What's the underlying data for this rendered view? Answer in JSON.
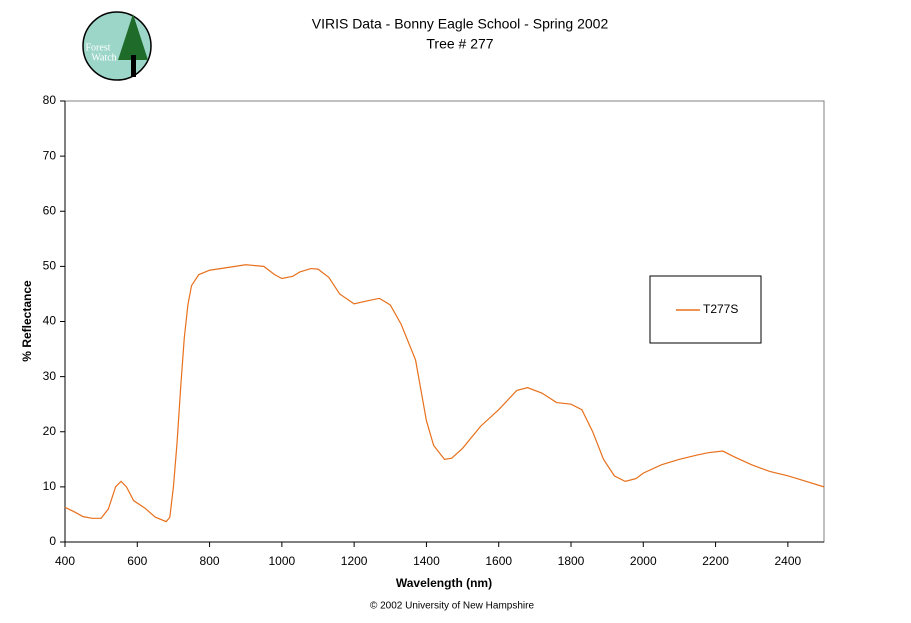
{
  "chart_data": {
    "type": "line",
    "title": "VIRIS Data - Bonny Eagle School - Spring 2002",
    "subtitle": "Tree # 277",
    "logo_text": [
      "Forest",
      "Watch"
    ],
    "x_label": "Wavelength (nm)",
    "y_label": "% Reflectance",
    "footer": "© 2002 University of New Hampshire",
    "x": [
      400,
      425,
      450,
      475,
      500,
      520,
      540,
      555,
      570,
      590,
      620,
      650,
      680,
      690,
      700,
      710,
      720,
      730,
      740,
      750,
      770,
      800,
      850,
      900,
      950,
      980,
      1000,
      1030,
      1050,
      1080,
      1100,
      1130,
      1160,
      1200,
      1240,
      1270,
      1300,
      1330,
      1370,
      1400,
      1420,
      1450,
      1470,
      1500,
      1550,
      1600,
      1650,
      1680,
      1720,
      1760,
      1800,
      1830,
      1860,
      1890,
      1920,
      1950,
      1980,
      2000,
      2050,
      2100,
      2150,
      2180,
      2220,
      2250,
      2300,
      2350,
      2400,
      2450,
      2500
    ],
    "series": [
      {
        "name": "T277S",
        "color": "#e8701c",
        "values": [
          6.3,
          5.5,
          4.6,
          4.3,
          4.3,
          6,
          10,
          11,
          10,
          7.5,
          6.2,
          4.5,
          3.7,
          4.5,
          10,
          18,
          28,
          37,
          43,
          46.5,
          48.5,
          49.3,
          49.8,
          50.3,
          50,
          48.5,
          47.8,
          48.2,
          49,
          49.6,
          49.5,
          48,
          45,
          43.2,
          43.8,
          44.2,
          43,
          39.5,
          33,
          22,
          17.5,
          15,
          15.2,
          17,
          21,
          24,
          27.5,
          28,
          27,
          25.3,
          25,
          24,
          20,
          15,
          12,
          11,
          11.5,
          12.5,
          14,
          15,
          15.8,
          16.2,
          16.5,
          15.5,
          14,
          12.8,
          12,
          11,
          10
        ]
      }
    ],
    "xlim": [
      400,
      2500
    ],
    "xticks": [
      400,
      600,
      800,
      1000,
      1200,
      1400,
      1600,
      1800,
      2000,
      2200,
      2400
    ],
    "ylim": [
      0,
      80
    ],
    "yticks": [
      0,
      10,
      20,
      30,
      40,
      50,
      60,
      70,
      80
    ],
    "legend": "right"
  }
}
